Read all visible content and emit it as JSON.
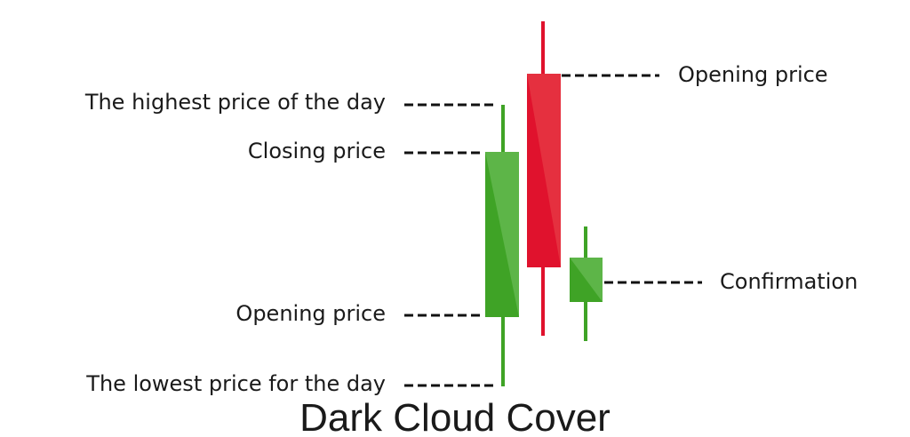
{
  "title": "Dark Cloud Cover",
  "labels": {
    "highest_price": "The highest price of the day",
    "closing_price": "Closing price",
    "opening_price_left": "Opening price",
    "lowest_price": "The lowest price for the day",
    "opening_price_right": "Opening price",
    "confirmation": "Confirmation"
  },
  "colors": {
    "bullish": "#3fa326",
    "bullish_light": "#5db548",
    "bearish": "#e0122d",
    "bearish_light": "#e5303f",
    "leader_line": "#111111"
  },
  "candles": [
    {
      "name": "bullish-candle",
      "direction": "up",
      "open": "Opening price",
      "close": "Closing price",
      "high": "The highest price of the day",
      "low": "The lowest price for the day"
    },
    {
      "name": "bearish-candle",
      "direction": "down",
      "open": "Opening price"
    },
    {
      "name": "confirmation-candle",
      "direction": "up",
      "note": "Confirmation"
    }
  ]
}
